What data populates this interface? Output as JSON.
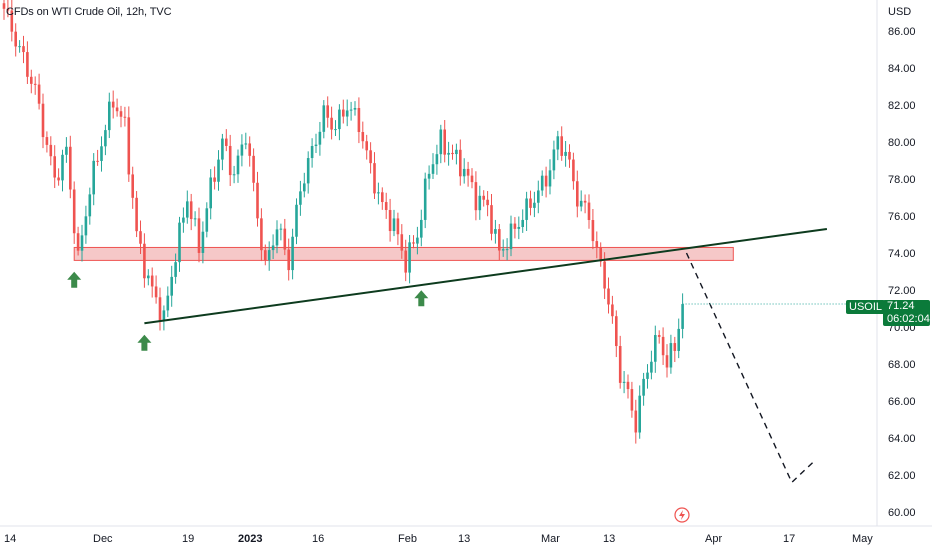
{
  "header": {
    "title": "CFDs on WTI Crude Oil, 12h, TVC",
    "currency": "USD"
  },
  "badge": {
    "symbol": "USOIL",
    "price": "71.24",
    "countdown": "06:02:04"
  },
  "colors": {
    "up": "#26a69a",
    "down": "#ef5350",
    "zone": "#ef9a9a",
    "trendline": "#0d3b1e",
    "arrow": "#3c8a4a",
    "badge": "#0b7a3a"
  },
  "chart_data": {
    "type": "candlestick",
    "title": "CFDs on WTI Crude Oil, 12h, TVC",
    "ylabel": "USD",
    "ylim": [
      59.5,
      87.5
    ],
    "y_ticks": [
      "86.00",
      "84.00",
      "82.00",
      "80.00",
      "78.00",
      "76.00",
      "74.00",
      "72.00",
      "70.00",
      "68.00",
      "66.00",
      "64.00",
      "62.00",
      "60.00"
    ],
    "x_ticks": [
      {
        "label": "14",
        "bold": false
      },
      {
        "label": "Dec",
        "bold": false
      },
      {
        "label": "19",
        "bold": false
      },
      {
        "label": "2023",
        "bold": true
      },
      {
        "label": "16",
        "bold": false
      },
      {
        "label": "Feb",
        "bold": false
      },
      {
        "label": "13",
        "bold": false
      },
      {
        "label": "Mar",
        "bold": false
      },
      {
        "label": "13",
        "bold": false
      },
      {
        "label": "Apr",
        "bold": false
      },
      {
        "label": "17",
        "bold": false
      },
      {
        "label": "May",
        "bold": false
      }
    ],
    "anchors": [
      [
        0,
        87.2
      ],
      [
        4,
        85.0
      ],
      [
        8,
        82.8
      ],
      [
        11,
        79.8
      ],
      [
        13,
        78.0
      ],
      [
        16,
        79.5
      ],
      [
        19,
        73.6
      ],
      [
        22,
        77.5
      ],
      [
        25,
        80.0
      ],
      [
        28,
        82.3
      ],
      [
        31,
        80.8
      ],
      [
        34,
        75.0
      ],
      [
        37,
        72.5
      ],
      [
        40,
        71.0
      ],
      [
        41,
        70.4
      ],
      [
        44,
        74.0
      ],
      [
        47,
        77.0
      ],
      [
        50,
        74.3
      ],
      [
        53,
        77.5
      ],
      [
        56,
        80.0
      ],
      [
        59,
        78.2
      ],
      [
        62,
        80.5
      ],
      [
        65,
        76.0
      ],
      [
        67,
        73.2
      ],
      [
        70,
        75.5
      ],
      [
        73,
        73.5
      ],
      [
        76,
        77.5
      ],
      [
        79,
        79.5
      ],
      [
        82,
        81.5
      ],
      [
        85,
        80.8
      ],
      [
        88,
        82.0
      ],
      [
        91,
        81.0
      ],
      [
        94,
        78.5
      ],
      [
        97,
        76.5
      ],
      [
        100,
        75.5
      ],
      [
        103,
        73.5
      ],
      [
        106,
        75.0
      ],
      [
        109,
        78.5
      ],
      [
        112,
        80.0
      ],
      [
        115,
        79.3
      ],
      [
        118,
        78.5
      ],
      [
        121,
        77.0
      ],
      [
        124,
        76.5
      ],
      [
        127,
        74.0
      ],
      [
        130,
        75.0
      ],
      [
        133,
        76.0
      ],
      [
        136,
        77.0
      ],
      [
        139,
        78.0
      ],
      [
        142,
        80.0
      ],
      [
        144,
        79.5
      ],
      [
        147,
        77.0
      ],
      [
        150,
        76.0
      ],
      [
        152,
        74.0
      ],
      [
        154,
        72.5
      ],
      [
        156,
        70.2
      ],
      [
        158,
        67.5
      ],
      [
        160,
        66.3
      ],
      [
        162,
        64.8
      ],
      [
        164,
        67.0
      ],
      [
        166,
        68.5
      ],
      [
        168,
        69.5
      ],
      [
        170,
        68.0
      ],
      [
        172,
        69.0
      ],
      [
        174,
        71.24
      ]
    ],
    "support_zone": {
      "from_index": 18,
      "to_index": 187,
      "top": 74.3,
      "bottom": 73.6
    },
    "trendline": [
      {
        "index": 36,
        "value": 70.2
      },
      {
        "index": 211,
        "value": 75.3
      }
    ],
    "projection": [
      {
        "index": 175,
        "value": 74.0
      },
      {
        "index": 202,
        "value": 61.6
      },
      {
        "index": 208,
        "value": 62.8
      }
    ],
    "up_arrows": [
      {
        "index": 18,
        "value": 73.2
      },
      {
        "index": 36,
        "value": 69.8
      },
      {
        "index": 107,
        "value": 72.2
      }
    ],
    "last_price": 71.24
  }
}
